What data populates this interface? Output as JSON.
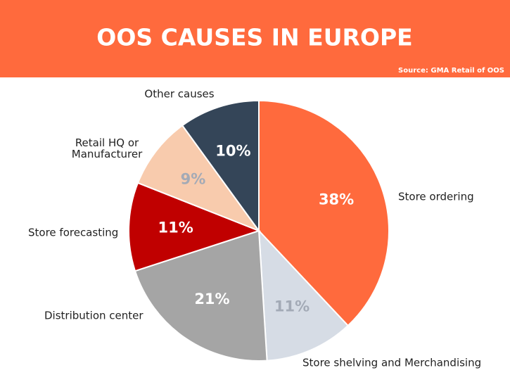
{
  "chart_data": {
    "type": "pie",
    "title": "OOS CAUSES IN EUROPE",
    "source": "Source: GMA Retail of OOS",
    "categories": [
      "Store ordering",
      "Store shelving and Merchandising",
      "Distribution center",
      "Store forecasting",
      "Retail HQ or\nManufacturer",
      "Other causes"
    ],
    "values": [
      38,
      11,
      21,
      11,
      9,
      10
    ],
    "value_labels": [
      "38%",
      "11%",
      "21%",
      "11%",
      "9%",
      "10%"
    ],
    "colors": [
      "#ff6a3d",
      "#d6dce5",
      "#a5a5a5",
      "#c00000",
      "#f8cbad",
      "#344558"
    ]
  }
}
